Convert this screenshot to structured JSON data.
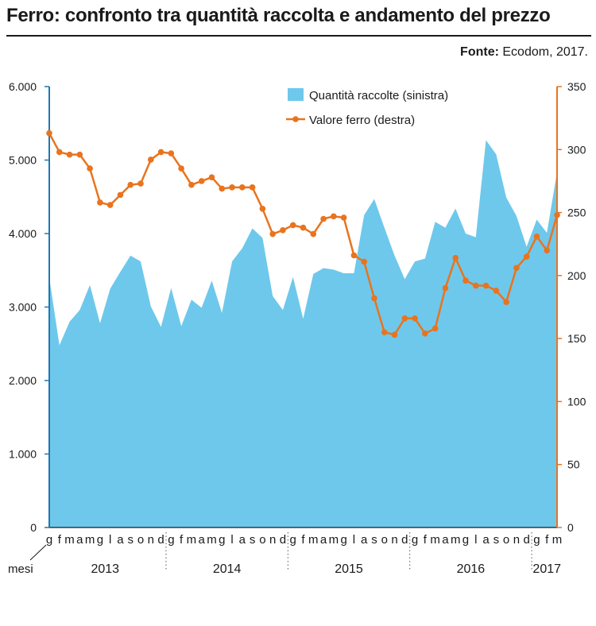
{
  "header": {
    "title": "Ferro: confronto tra quantità raccolta e andamento del prezzo",
    "source_label": "Fonte:",
    "source_text": "Ecodom, 2017."
  },
  "colors": {
    "area": "#6ec8ec",
    "line": "#e8741e",
    "left_axis": "#1f77b4",
    "right_axis": "#e8741e",
    "text": "#1a1a1a"
  },
  "chart_data": {
    "type": "area+line",
    "x_month_labels": [
      "g",
      "f",
      "m",
      "a",
      "m",
      "g",
      "l",
      "a",
      "s",
      "o",
      "n",
      "d",
      "g",
      "f",
      "m",
      "a",
      "m",
      "g",
      "l",
      "a",
      "s",
      "o",
      "n",
      "d",
      "g",
      "f",
      "m",
      "a",
      "m",
      "g",
      "l",
      "a",
      "s",
      "o",
      "n",
      "d",
      "g",
      "f",
      "m",
      "a",
      "m",
      "g",
      "l",
      "a",
      "s",
      "o",
      "n",
      "d",
      "g",
      "f",
      "m"
    ],
    "years": [
      {
        "label": "2013",
        "start": 0,
        "end": 11
      },
      {
        "label": "2014",
        "start": 12,
        "end": 23
      },
      {
        "label": "2015",
        "start": 24,
        "end": 35
      },
      {
        "label": "2016",
        "start": 36,
        "end": 47
      },
      {
        "label": "2017",
        "start": 48,
        "end": 50
      }
    ],
    "x_axis_label": "mesi",
    "left_axis": {
      "ticks": [
        "0",
        "1.000",
        "2.000",
        "3.000",
        "4.000",
        "5.000",
        "6.000"
      ],
      "ylim": [
        0,
        6000
      ]
    },
    "right_axis": {
      "ticks": [
        "0",
        "50",
        "100",
        "150",
        "200",
        "250",
        "300",
        "350"
      ],
      "ylim": [
        0,
        350
      ]
    },
    "legend": {
      "placement": "top-center"
    },
    "series": [
      {
        "name": "Quantità raccolte (sinistra)",
        "kind": "area",
        "axis": "left",
        "values": [
          3400,
          2480,
          2800,
          2960,
          3300,
          2780,
          3250,
          3480,
          3700,
          3620,
          3010,
          2730,
          3260,
          2740,
          3100,
          2990,
          3360,
          2920,
          3620,
          3800,
          4070,
          3940,
          3150,
          2960,
          3410,
          2840,
          3450,
          3530,
          3510,
          3460,
          3460,
          4250,
          4470,
          4080,
          3700,
          3380,
          3620,
          3660,
          4160,
          4080,
          4340,
          4000,
          3950,
          5270,
          5080,
          4490,
          4240,
          3820,
          4190,
          4010,
          4840
        ]
      },
      {
        "name": "Valore ferro (destra)",
        "kind": "line",
        "axis": "right",
        "values": [
          313,
          298,
          296,
          296,
          285,
          258,
          256,
          264,
          272,
          273,
          292,
          298,
          297,
          285,
          272,
          275,
          278,
          269,
          270,
          270,
          270,
          253,
          233,
          236,
          240,
          238,
          233,
          245,
          247,
          246,
          216,
          211,
          182,
          155,
          153,
          166,
          166,
          154,
          158,
          190,
          214,
          196,
          192,
          192,
          188,
          179,
          206,
          215,
          231,
          220,
          248
        ]
      }
    ]
  }
}
